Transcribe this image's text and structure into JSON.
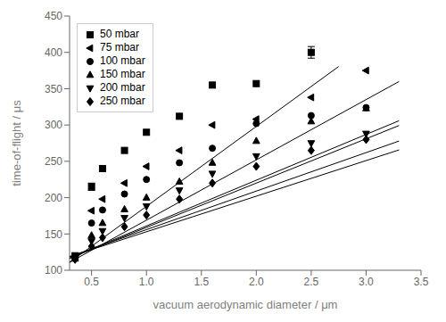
{
  "chart_data": {
    "type": "scatter",
    "xlabel": "vacuum aerodynamic diameter / μm",
    "ylabel": "time-of-flight / μs",
    "xlim": [
      0.3,
      3.5
    ],
    "ylim": [
      100,
      450
    ],
    "xticks": [
      0.5,
      {
        "value": 1.0,
        "label": "1.0"
      },
      1.5,
      {
        "value": 2.0,
        "label": "2.0"
      },
      2.5,
      {
        "value": 3.0,
        "label": "3.0"
      },
      3.5
    ],
    "yticks": [
      100,
      150,
      200,
      250,
      300,
      350,
      400,
      450
    ],
    "grid": false,
    "legend": "upper left",
    "series": [
      {
        "name": "50 mbar",
        "marker": "square",
        "color": "#000000",
        "x": [
          0.35,
          0.5,
          0.6,
          0.8,
          1.0,
          1.3,
          1.6,
          2.0,
          2.5
        ],
        "values": [
          120,
          215,
          240,
          265,
          290,
          312,
          355,
          357,
          400
        ],
        "yerr": [
          0,
          5,
          0,
          0,
          0,
          0,
          0,
          0,
          8
        ],
        "fit": {
          "x": [
            0.3,
            2.75
          ],
          "values": [
            111.0,
            380.5
          ]
        }
      },
      {
        "name": "75 mbar",
        "marker": "triangle-left",
        "color": "#000000",
        "x": [
          0.35,
          0.5,
          0.6,
          0.8,
          1.0,
          1.3,
          1.6,
          2.0,
          2.5,
          3.0
        ],
        "values": [
          118,
          182,
          198,
          220,
          243,
          265,
          300,
          308,
          338,
          375
        ],
        "yerr": [
          0,
          0,
          0,
          0,
          0,
          0,
          0,
          0,
          0,
          0
        ],
        "fit": {
          "x": [
            0.3,
            3.3
          ],
          "values": [
            110.9,
            359.9
          ]
        }
      },
      {
        "name": "100 mbar",
        "marker": "circle",
        "color": "#000000",
        "x": [
          0.35,
          0.5,
          0.6,
          0.8,
          1.0,
          1.3,
          1.6,
          2.0,
          2.5,
          3.0
        ],
        "values": [
          118,
          165,
          183,
          205,
          225,
          248,
          268,
          302,
          313,
          324
        ],
        "yerr": [
          0,
          0,
          0,
          0,
          0,
          0,
          0,
          0,
          0,
          0
        ],
        "fit": {
          "x": [
            0.3,
            3.3
          ],
          "values": [
            116.9,
            305.9
          ]
        }
      },
      {
        "name": "150 mbar",
        "marker": "triangle-up",
        "color": "#000000",
        "x": [
          0.35,
          0.5,
          0.6,
          0.8,
          1.0,
          1.3,
          1.6,
          2.0,
          2.5,
          3.0
        ],
        "values": [
          116,
          148,
          165,
          184,
          200,
          222,
          248,
          278,
          305,
          323
        ],
        "yerr": [
          0,
          0,
          0,
          0,
          0,
          0,
          0,
          0,
          0,
          0
        ],
        "fit": {
          "x": [
            0.3,
            3.3
          ],
          "values": [
            116.3,
            299.3
          ]
        }
      },
      {
        "name": "200 mbar",
        "marker": "triangle-down",
        "color": "#000000",
        "x": [
          0.35,
          0.5,
          0.6,
          0.8,
          1.0,
          1.3,
          1.6,
          2.0,
          2.5,
          3.0
        ],
        "values": [
          116,
          140,
          154,
          172,
          188,
          210,
          233,
          257,
          275,
          288
        ],
        "yerr": [
          0,
          0,
          0,
          0,
          0,
          0,
          0,
          0,
          0,
          0
        ],
        "fit": {
          "x": [
            0.3,
            3.3
          ],
          "values": [
            118.9,
            277.9
          ]
        }
      },
      {
        "name": "250 mbar",
        "marker": "diamond",
        "color": "#000000",
        "x": [
          0.35,
          0.5,
          0.6,
          0.8,
          1.0,
          1.3,
          1.6,
          2.0,
          2.5,
          3.0
        ],
        "values": [
          115,
          133,
          145,
          160,
          176,
          198,
          220,
          243,
          265,
          280
        ],
        "yerr": [
          0,
          0,
          0,
          0,
          0,
          0,
          0,
          0,
          0,
          0
        ],
        "fit": {
          "x": [
            0.3,
            3.3
          ],
          "values": [
            118.7,
            265.7
          ]
        }
      }
    ]
  }
}
